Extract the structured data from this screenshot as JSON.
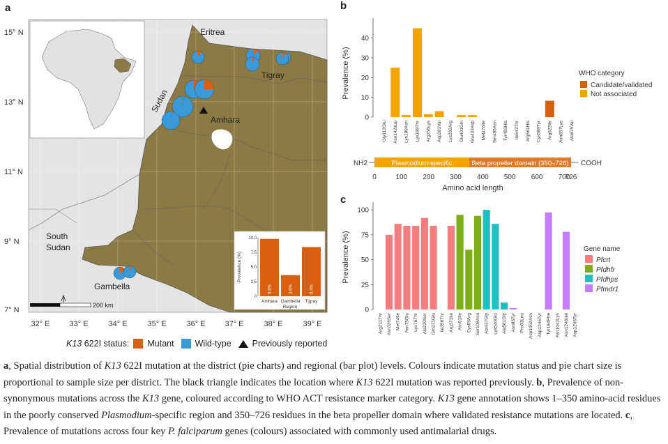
{
  "panel_a": {
    "label": "a",
    "lat_ticks": [
      "15° N",
      "13° N",
      "11° N",
      "9° N",
      "7° N"
    ],
    "lon_ticks": [
      "32° E",
      "33° E",
      "34° E",
      "35° E",
      "36° E",
      "37° E",
      "38° E",
      "39° E"
    ],
    "places": {
      "eritrea": "Eritrea",
      "sudan": "Sudan",
      "tigray": "Tigray",
      "amhara": "Amhara",
      "south_sudan_1": "South",
      "south_sudan_2": "Sudan",
      "gambella": "Gambella"
    },
    "scale_label": "200 km",
    "legend_title_gene": "K13",
    "legend_title_rest": " 622I status:",
    "legend_mutant": "Mutant",
    "legend_wildtype": "Wild-type",
    "legend_previous": "Previously reported",
    "colors": {
      "mutant": "#d95f0e",
      "wildtype": "#3a9ad9",
      "land": "#8c7a45",
      "sea": "#d8d8d8",
      "country": "#e6e6e6"
    },
    "inset_bar": {
      "ylabel": "Prevalence (%)",
      "xlabel": "Region",
      "yticks": [
        "0",
        "2.5",
        "5.0",
        "7.5",
        "10.0"
      ],
      "categories": [
        "Amhara",
        "Gambella",
        "Tigray"
      ],
      "values": [
        9.8,
        3.6,
        8.4
      ],
      "value_labels": [
        "9.8%",
        "3.6%",
        "8.4%"
      ],
      "ylim": [
        0,
        10
      ]
    }
  },
  "chart_data": [
    {
      "type": "bar",
      "panel": "b",
      "ylabel": "Prevalence (%)",
      "xlabel": "Amino acid length",
      "ylim": [
        0,
        48
      ],
      "yticks": [
        "0",
        "10",
        "20",
        "30",
        "40"
      ],
      "categories": [
        "Gly112Glu",
        "Asn142dup",
        "Lys189Asn",
        "Lys189Thr",
        "Arg255Lys",
        "Asp281Val",
        "Lys292Arg",
        "Glu401Gln",
        "Glu433Asp",
        "Met476Ile",
        "Ser485Asn",
        "Tyr493His",
        "Ile543Thr",
        "Arg561His",
        "Cys580Tyr",
        "Arg622Ile",
        "Asn657Lys",
        "Ala675Val"
      ],
      "values": [
        0,
        25,
        1,
        45,
        1.5,
        3,
        0,
        1,
        1,
        0,
        0,
        0,
        0,
        0,
        0,
        8.3,
        0,
        0
      ],
      "value_category": [
        "n",
        "n",
        "n",
        "n",
        "n",
        "n",
        "n",
        "n",
        "n",
        "c",
        "c",
        "c",
        "c",
        "c",
        "c",
        "c",
        "c",
        "c"
      ],
      "legend_title": "WHO category",
      "legend": [
        {
          "key": "c",
          "name": "Candidate/validated",
          "color": "#d95f0e"
        },
        {
          "key": "n",
          "name": "Not associated",
          "color": "#f5a300"
        }
      ],
      "gene_track": {
        "nh2": "NH2",
        "cooh": "COOH",
        "region1": "Plasmodium-specific",
        "region2": "Beta propeller domain (350–726)",
        "ticks": [
          "0",
          "100",
          "200",
          "300",
          "400",
          "500",
          "600",
          "700",
          "726"
        ]
      }
    },
    {
      "type": "bar",
      "panel": "c",
      "ylabel": "Prevalence (%)",
      "ylim": [
        0,
        105
      ],
      "yticks": [
        "0",
        "25",
        "50",
        "75",
        "100"
      ],
      "categories": [
        "Arg211Thr",
        "Asn326Ser",
        "Met74Ile",
        "Asn75Glu",
        "Lys76Thr",
        "Ala220Ser",
        "Gln271Glu",
        "Ile356Thr",
        "Arg371Ile",
        "Asn51Ile",
        "Cys59Arg",
        "Ser108Asn",
        "Ala437Gly",
        "Lys540Glu",
        "Ala581Gly",
        "Asn86Tyr",
        "Pro93Leu",
        "Asp1052Asn",
        "Asp1246Tyr",
        "Tyr184Phe",
        "Asn1042Lys",
        "Asn1246del",
        "Asp1246Tyr"
      ],
      "values": [
        0,
        75,
        86,
        84,
        84,
        92,
        84,
        0,
        84,
        95,
        60,
        94,
        100,
        86,
        7,
        1.5,
        0,
        0,
        0,
        97.5,
        0,
        78,
        0
      ],
      "gene": [
        "Pfcrt",
        "Pfcrt",
        "Pfcrt",
        "Pfcrt",
        "Pfcrt",
        "Pfcrt",
        "Pfcrt",
        "Pfcrt",
        "Pfcrt",
        "Pfdhfr",
        "Pfdhfr",
        "Pfdhfr",
        "Pfdhps",
        "Pfdhps",
        "Pfdhps",
        "Pfmdr1",
        "Pfmdr1",
        "Pfmdr1",
        "Pfmdr1",
        "Pfmdr1",
        "Pfmdr1",
        "Pfmdr1",
        "Pfmdr1"
      ],
      "legend_title": "Gene name",
      "legend": [
        {
          "name": "Pfcrt",
          "color": "#f47c7c"
        },
        {
          "name": "Pfdhfr",
          "color": "#7cae1a"
        },
        {
          "name": "Pfdhps",
          "color": "#1fbfc4"
        },
        {
          "name": "Pfmdr1",
          "color": "#c77cff"
        }
      ]
    }
  ],
  "panel_labels": {
    "b": "b",
    "c": "c"
  },
  "caption": [
    {
      "t": "a",
      "b": true
    },
    {
      "t": ", Spatial distribution of "
    },
    {
      "t": "K13",
      "i": true
    },
    {
      "t": " 622I mutation at the district (pie charts) and regional (bar plot) levels. Colours indicate mutation status and pie chart size is proportional to sample size per district. The black triangle indicates the location where "
    },
    {
      "t": "K13",
      "i": true
    },
    {
      "t": " 622I mutation was reported previously. "
    },
    {
      "t": "b",
      "b": true
    },
    {
      "t": ", Prevalence of non-synonymous mutations across the "
    },
    {
      "t": "K13",
      "i": true
    },
    {
      "t": " gene, coloured according to WHO ACT resistance marker category. "
    },
    {
      "t": "K13",
      "i": true
    },
    {
      "t": " gene annotation shows 1–350 amino-acid residues in the poorly conserved "
    },
    {
      "t": "Plasmodium",
      "i": true
    },
    {
      "t": "-specific region and 350–726 residues in the beta propeller domain where validated resistance mutations are located. "
    },
    {
      "t": "c",
      "b": true
    },
    {
      "t": ", Prevalence of mutations across four key "
    },
    {
      "t": "P. falciparum",
      "i": true
    },
    {
      "t": " genes (colours) associated with commonly used antimalarial drugs."
    }
  ]
}
